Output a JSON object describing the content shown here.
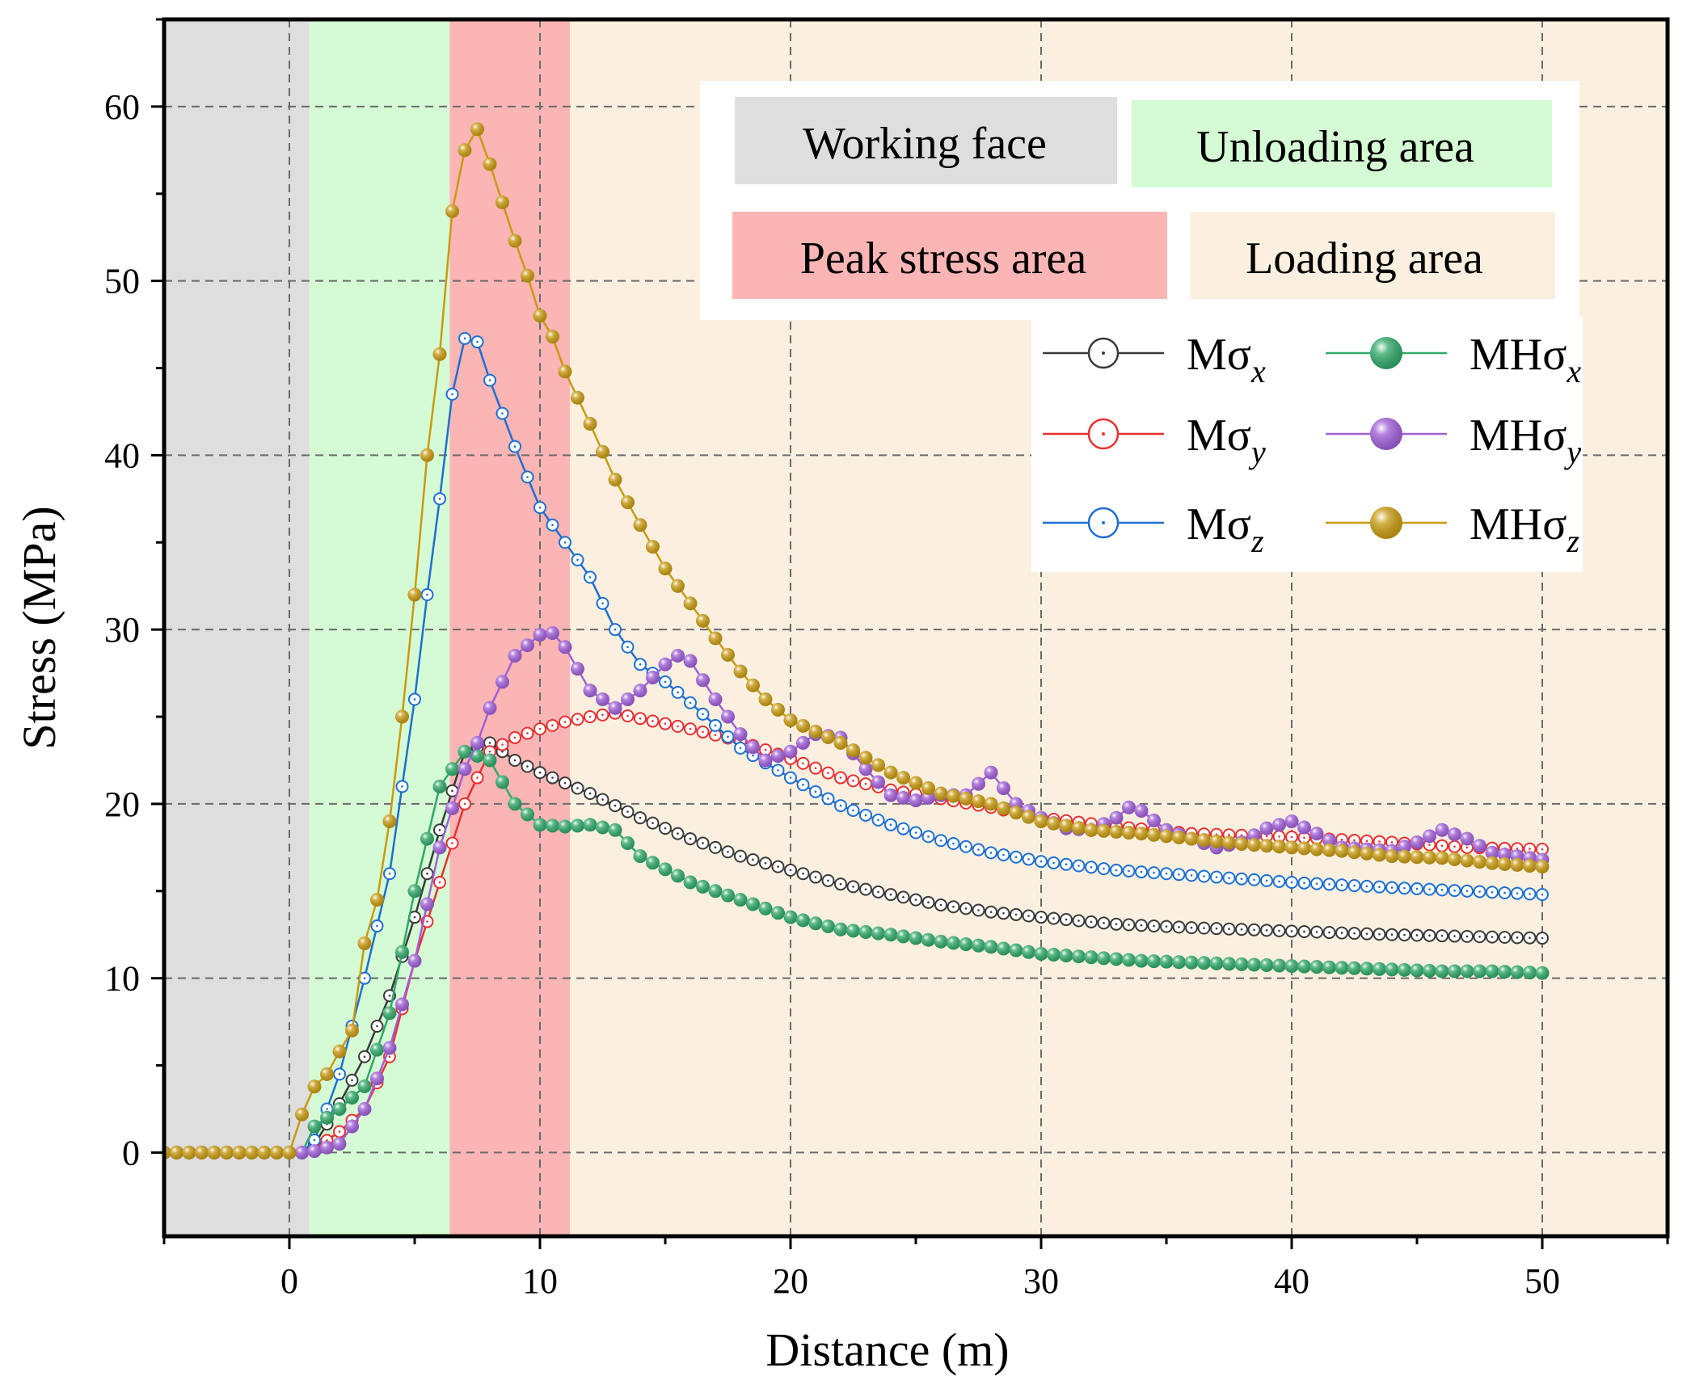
{
  "chart_data": {
    "type": "line",
    "xlabel": "Distance (m)",
    "ylabel": "Stress (MPa)",
    "xlim": [
      -5,
      55
    ],
    "ylim": [
      -4.8,
      65
    ],
    "xticks": [
      0,
      10,
      20,
      30,
      40,
      50
    ],
    "yticks": [
      0,
      10,
      20,
      30,
      40,
      50,
      60
    ],
    "grid": true,
    "regions": [
      {
        "name": "Working face",
        "x0": -5,
        "x1": 0.8,
        "color": "#dedede"
      },
      {
        "name": "Unloading area",
        "x0": 0.8,
        "x1": 6.4,
        "color": "#d5fbd5"
      },
      {
        "name": "Peak stress area",
        "x0": 6.4,
        "x1": 11.2,
        "color": "#fbb5b5"
      },
      {
        "name": "Loading area",
        "x0": 11.2,
        "x1": 55,
        "color": "#fbf0e0"
      }
    ],
    "region_legend_position": "top-right",
    "series_legend_position": "top-right",
    "series": [
      {
        "name": "Mσx",
        "base": "Mσ",
        "sub": "x",
        "color": "#3a3a3a",
        "marker": "open",
        "points": [
          [
            -5,
            0
          ],
          [
            0,
            0
          ],
          [
            0.8,
            0
          ],
          [
            2,
            2.8
          ],
          [
            3,
            5.5
          ],
          [
            4,
            9
          ],
          [
            5,
            13.5
          ],
          [
            6,
            18.5
          ],
          [
            7,
            23
          ],
          [
            8,
            23.5
          ],
          [
            9,
            22.5
          ],
          [
            10,
            21.8
          ],
          [
            12,
            20.6
          ],
          [
            14,
            19.2
          ],
          [
            16,
            18
          ],
          [
            18,
            17
          ],
          [
            20,
            16.2
          ],
          [
            22,
            15.4
          ],
          [
            24,
            14.8
          ],
          [
            26,
            14.2
          ],
          [
            28,
            13.8
          ],
          [
            30,
            13.5
          ],
          [
            33,
            13.1
          ],
          [
            36,
            12.9
          ],
          [
            40,
            12.7
          ],
          [
            44,
            12.5
          ],
          [
            47,
            12.4
          ],
          [
            50,
            12.3
          ]
        ]
      },
      {
        "name": "Mσy",
        "base": "Mσ",
        "sub": "y",
        "color": "#e83030",
        "marker": "open",
        "points": [
          [
            -5,
            0
          ],
          [
            0,
            0
          ],
          [
            0.8,
            0
          ],
          [
            2,
            1.2
          ],
          [
            3,
            2.5
          ],
          [
            4,
            5.5
          ],
          [
            5,
            11
          ],
          [
            6,
            15.5
          ],
          [
            7,
            20
          ],
          [
            8,
            23
          ],
          [
            9,
            23.8
          ],
          [
            10,
            24.3
          ],
          [
            11,
            24.7
          ],
          [
            12,
            25
          ],
          [
            13,
            25.2
          ],
          [
            14,
            24.9
          ],
          [
            16,
            24.3
          ],
          [
            18,
            23.6
          ],
          [
            20,
            22.6
          ],
          [
            22,
            21.5
          ],
          [
            24,
            20.8
          ],
          [
            26,
            20.3
          ],
          [
            28,
            19.8
          ],
          [
            30,
            19.2
          ],
          [
            33,
            18.7
          ],
          [
            36,
            18.3
          ],
          [
            40,
            18.1
          ],
          [
            44,
            17.8
          ],
          [
            47,
            17.5
          ],
          [
            50,
            17.4
          ]
        ]
      },
      {
        "name": "Mσz",
        "base": "Mσ",
        "sub": "z",
        "color": "#1e6fd0",
        "marker": "open",
        "points": [
          [
            -5,
            0
          ],
          [
            0,
            0
          ],
          [
            0.8,
            0
          ],
          [
            1.5,
            2.5
          ],
          [
            2,
            4.5
          ],
          [
            3,
            10
          ],
          [
            4,
            16
          ],
          [
            5,
            26
          ],
          [
            5.5,
            32
          ],
          [
            6,
            37.5
          ],
          [
            6.5,
            43.5
          ],
          [
            7,
            46.7
          ],
          [
            7.5,
            46.5
          ],
          [
            8,
            44.3
          ],
          [
            9,
            40.5
          ],
          [
            10,
            37
          ],
          [
            11,
            35
          ],
          [
            12,
            33
          ],
          [
            13,
            30
          ],
          [
            14,
            28
          ],
          [
            15,
            27
          ],
          [
            16,
            25.8
          ],
          [
            17,
            24.5
          ],
          [
            18,
            23.2
          ],
          [
            20,
            21.5
          ],
          [
            22,
            19.9
          ],
          [
            24,
            18.8
          ],
          [
            26,
            17.9
          ],
          [
            28,
            17.2
          ],
          [
            30,
            16.7
          ],
          [
            33,
            16.2
          ],
          [
            36,
            15.9
          ],
          [
            40,
            15.5
          ],
          [
            44,
            15.2
          ],
          [
            47,
            15
          ],
          [
            50,
            14.8
          ]
        ]
      },
      {
        "name": "MHσx",
        "base": "MHσ",
        "sub": "x",
        "color": "#2fa868",
        "marker": "filled",
        "points": [
          [
            -5,
            0
          ],
          [
            0,
            0
          ],
          [
            0.8,
            0
          ],
          [
            1,
            1.5
          ],
          [
            2,
            2.5
          ],
          [
            3,
            3.8
          ],
          [
            4,
            8
          ],
          [
            5,
            15
          ],
          [
            6,
            21
          ],
          [
            7,
            23
          ],
          [
            8,
            22.5
          ],
          [
            9,
            20
          ],
          [
            10,
            18.8
          ],
          [
            11,
            18.7
          ],
          [
            12,
            18.8
          ],
          [
            13,
            18.5
          ],
          [
            14,
            17
          ],
          [
            16,
            15.5
          ],
          [
            18,
            14.5
          ],
          [
            20,
            13.5
          ],
          [
            22,
            12.8
          ],
          [
            24,
            12.5
          ],
          [
            26,
            12.1
          ],
          [
            28,
            11.8
          ],
          [
            30,
            11.4
          ],
          [
            32,
            11.2
          ],
          [
            34,
            11
          ],
          [
            36,
            10.9
          ],
          [
            38,
            10.8
          ],
          [
            40,
            10.7
          ],
          [
            42,
            10.6
          ],
          [
            44,
            10.5
          ],
          [
            46,
            10.4
          ],
          [
            48,
            10.4
          ],
          [
            50,
            10.3
          ]
        ]
      },
      {
        "name": "MHσy",
        "base": "MHσ",
        "sub": "y",
        "color": "#a05ed8",
        "marker": "filled",
        "points": [
          [
            -5,
            0
          ],
          [
            0,
            0
          ],
          [
            0.8,
            0
          ],
          [
            2,
            0.5
          ],
          [
            3,
            2.5
          ],
          [
            4,
            6
          ],
          [
            5,
            11
          ],
          [
            6,
            17.5
          ],
          [
            7,
            22
          ],
          [
            7.5,
            23.5
          ],
          [
            8,
            25.5
          ],
          [
            9,
            28.5
          ],
          [
            10,
            29.7
          ],
          [
            10.5,
            29.8
          ],
          [
            11,
            29
          ],
          [
            12,
            26.5
          ],
          [
            13,
            25.5
          ],
          [
            14,
            26.5
          ],
          [
            15,
            28
          ],
          [
            15.5,
            28.5
          ],
          [
            16,
            28.2
          ],
          [
            17,
            26
          ],
          [
            18,
            24
          ],
          [
            19,
            22.5
          ],
          [
            20,
            23
          ],
          [
            21,
            24
          ],
          [
            22,
            23.8
          ],
          [
            23,
            22
          ],
          [
            24,
            20.5
          ],
          [
            25,
            20.2
          ],
          [
            26,
            20.5
          ],
          [
            27,
            20.5
          ],
          [
            28,
            21.8
          ],
          [
            29,
            20
          ],
          [
            30,
            19.2
          ],
          [
            31,
            18.6
          ],
          [
            32,
            18.5
          ],
          [
            33,
            19.2
          ],
          [
            33.5,
            19.8
          ],
          [
            34,
            19.6
          ],
          [
            35,
            18.5
          ],
          [
            36,
            18
          ],
          [
            37,
            17.5
          ],
          [
            38,
            17.8
          ],
          [
            39,
            18.6
          ],
          [
            40,
            19
          ],
          [
            41,
            18.3
          ],
          [
            42,
            17.5
          ],
          [
            44,
            17.3
          ],
          [
            45,
            17.8
          ],
          [
            46,
            18.5
          ],
          [
            47,
            18
          ],
          [
            48,
            17.2
          ],
          [
            50,
            16.8
          ]
        ]
      },
      {
        "name": "MHσz",
        "base": "MHσ",
        "sub": "z",
        "color": "#c89a10",
        "marker": "filled",
        "points": [
          [
            -5,
            0
          ],
          [
            0,
            0
          ],
          [
            0.8,
            3.5
          ],
          [
            1.5,
            4.5
          ],
          [
            2,
            5.8
          ],
          [
            2.5,
            7
          ],
          [
            3,
            12
          ],
          [
            3.5,
            14.5
          ],
          [
            4,
            19
          ],
          [
            4.5,
            25
          ],
          [
            5,
            32
          ],
          [
            5.5,
            40
          ],
          [
            6,
            45.8
          ],
          [
            6.5,
            54
          ],
          [
            7,
            57.5
          ],
          [
            7.5,
            58.7
          ],
          [
            8,
            56.7
          ],
          [
            8.5,
            54.5
          ],
          [
            9,
            52.3
          ],
          [
            9.5,
            50.3
          ],
          [
            10,
            48
          ],
          [
            10.5,
            46.8
          ],
          [
            11,
            44.8
          ],
          [
            12,
            41.8
          ],
          [
            13,
            38.6
          ],
          [
            14,
            36
          ],
          [
            15,
            33.5
          ],
          [
            16,
            31.5
          ],
          [
            17,
            29.5
          ],
          [
            18,
            27.6
          ],
          [
            19,
            26
          ],
          [
            20,
            24.8
          ],
          [
            22,
            23.5
          ],
          [
            24,
            21.8
          ],
          [
            26,
            20.6
          ],
          [
            28,
            20
          ],
          [
            30,
            19
          ],
          [
            32,
            18.5
          ],
          [
            34,
            18.3
          ],
          [
            36,
            18
          ],
          [
            38,
            17.7
          ],
          [
            40,
            17.5
          ],
          [
            42,
            17.3
          ],
          [
            44,
            17
          ],
          [
            46,
            16.9
          ],
          [
            48,
            16.6
          ],
          [
            50,
            16.4
          ]
        ]
      }
    ]
  }
}
